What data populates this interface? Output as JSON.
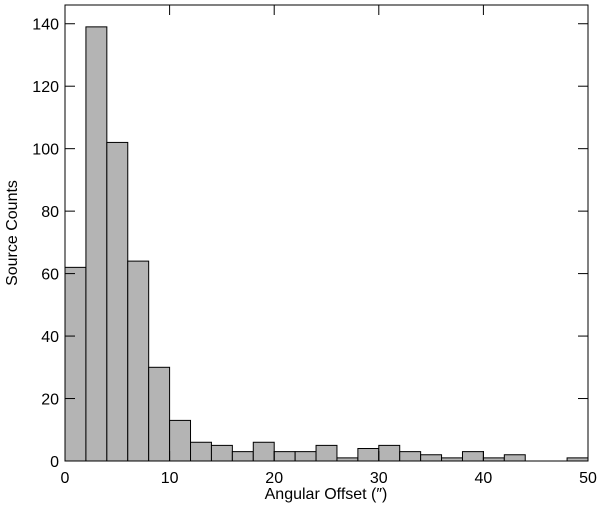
{
  "chart_data": {
    "type": "histogram",
    "xlabel": "Angular Offset (″)",
    "ylabel": "Source Counts",
    "bins": [
      0,
      2,
      4,
      6,
      8,
      10,
      12,
      14,
      16,
      18,
      20,
      22,
      24,
      26,
      28,
      30,
      32,
      34,
      36,
      38,
      40,
      42,
      44,
      46,
      48,
      50
    ],
    "values": [
      62,
      139,
      102,
      64,
      30,
      13,
      6,
      5,
      3,
      6,
      3,
      3,
      5,
      1,
      4,
      5,
      3,
      2,
      1,
      3,
      1,
      2,
      0,
      0,
      1
    ],
    "color": "#b4b4b4",
    "xlim": [
      0,
      50
    ],
    "xticks": [
      0,
      10,
      20,
      30,
      40,
      50
    ],
    "ylim": [
      0,
      146
    ],
    "yticks": [
      0,
      20,
      40,
      60,
      80,
      100,
      120,
      140
    ]
  }
}
